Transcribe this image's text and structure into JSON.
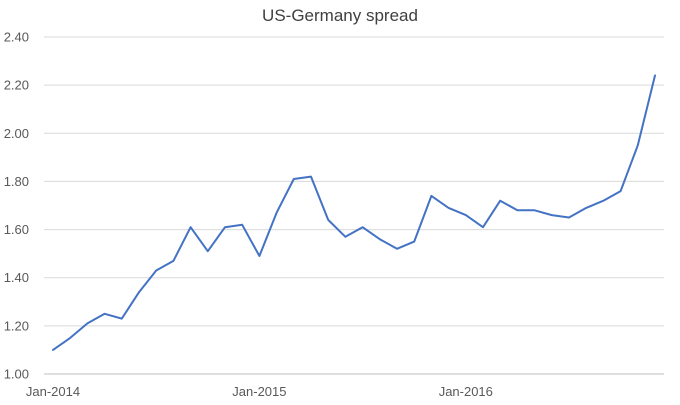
{
  "chart_data": {
    "type": "line",
    "title": "US-Germany spread",
    "xlabel": "",
    "ylabel": "",
    "ylim": [
      1.0,
      2.4
    ],
    "y_ticks": [
      1.0,
      1.2,
      1.4,
      1.6,
      1.8,
      2.0,
      2.2,
      2.4
    ],
    "y_tick_labels": [
      "1.00",
      "1.20",
      "1.40",
      "1.60",
      "1.80",
      "2.00",
      "2.20",
      "2.40"
    ],
    "x": [
      "2014-01",
      "2014-02",
      "2014-03",
      "2014-04",
      "2014-05",
      "2014-06",
      "2014-07",
      "2014-08",
      "2014-09",
      "2014-10",
      "2014-11",
      "2014-12",
      "2015-01",
      "2015-02",
      "2015-03",
      "2015-04",
      "2015-05",
      "2015-06",
      "2015-07",
      "2015-08",
      "2015-09",
      "2015-10",
      "2015-11",
      "2015-12",
      "2016-01",
      "2016-02",
      "2016-03",
      "2016-04",
      "2016-05",
      "2016-06",
      "2016-07",
      "2016-08",
      "2016-09",
      "2016-10",
      "2016-11",
      "2016-12"
    ],
    "x_ticks": [
      {
        "index": 0,
        "label": "Jan-2014"
      },
      {
        "index": 12,
        "label": "Jan-2015"
      },
      {
        "index": 24,
        "label": "Jan-2016"
      }
    ],
    "gridlines": true,
    "legend": "none",
    "series": [
      {
        "name": "US-Germany spread",
        "color": "#4472c4",
        "values": [
          1.1,
          1.15,
          1.21,
          1.25,
          1.23,
          1.34,
          1.43,
          1.47,
          1.61,
          1.51,
          1.61,
          1.62,
          1.49,
          1.67,
          1.81,
          1.82,
          1.64,
          1.57,
          1.61,
          1.56,
          1.52,
          1.55,
          1.74,
          1.69,
          1.66,
          1.61,
          1.72,
          1.68,
          1.68,
          1.66,
          1.65,
          1.69,
          1.72,
          1.76,
          1.95,
          2.24
        ]
      }
    ]
  }
}
